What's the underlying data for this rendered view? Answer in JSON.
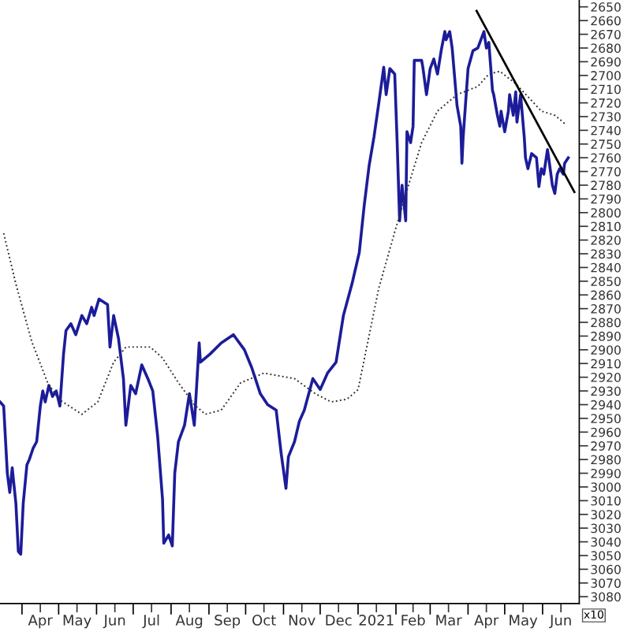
{
  "chart_data": {
    "type": "line",
    "annotations": [
      "x10"
    ],
    "xlim": [
      "2020-03-14",
      "2021-07-01"
    ],
    "ylim": [
      3085,
      2645
    ],
    "xticks": [
      {
        "value": "2020-04-01",
        "label": null
      },
      {
        "value": "2020-05-01",
        "label": null
      },
      {
        "value": "2020-06-01",
        "label": null
      },
      {
        "value": "2020-07-01",
        "label": null
      },
      {
        "value": "2020-08-01",
        "label": null
      },
      {
        "value": "2020-09-01",
        "label": null
      },
      {
        "value": "2020-10-01",
        "label": null
      },
      {
        "value": "2020-11-01",
        "label": null
      },
      {
        "value": "2020-12-01",
        "label": null
      },
      {
        "value": "2021-01-01",
        "label": null
      },
      {
        "value": "2021-02-01",
        "label": null
      },
      {
        "value": "2021-03-01",
        "label": null
      },
      {
        "value": "2021-04-01",
        "label": null
      },
      {
        "value": "2021-05-01",
        "label": null
      },
      {
        "value": "2021-06-01",
        "label": null
      },
      {
        "value": "2020-04-16",
        "label": "Apr"
      },
      {
        "value": "2020-05-16",
        "label": "May"
      },
      {
        "value": "2020-06-16",
        "label": "Jun"
      },
      {
        "value": "2020-07-16",
        "label": "Jul"
      },
      {
        "value": "2020-08-16",
        "label": "Aug"
      },
      {
        "value": "2020-09-16",
        "label": "Sep"
      },
      {
        "value": "2020-10-16",
        "label": "Oct"
      },
      {
        "value": "2020-11-16",
        "label": "Nov"
      },
      {
        "value": "2020-12-16",
        "label": "Dec"
      },
      {
        "value": "2021-01-16",
        "label": "2021"
      },
      {
        "value": "2021-02-15",
        "label": "Feb"
      },
      {
        "value": "2021-03-16",
        "label": "Mar"
      },
      {
        "value": "2021-04-16",
        "label": "Apr"
      },
      {
        "value": "2021-05-16",
        "label": "May"
      },
      {
        "value": "2021-06-16",
        "label": "Jun"
      }
    ],
    "yticks": [
      2650,
      2660,
      2670,
      2680,
      2690,
      2700,
      2710,
      2720,
      2730,
      2740,
      2750,
      2760,
      2770,
      2780,
      2790,
      2800,
      2810,
      2820,
      2830,
      2840,
      2850,
      2860,
      2870,
      2880,
      2890,
      2900,
      2910,
      2920,
      2930,
      2940,
      2950,
      2960,
      2970,
      2980,
      2990,
      3000,
      3010,
      3020,
      3030,
      3040,
      3050,
      3060,
      3070,
      3080
    ],
    "grid": false,
    "legend": false,
    "series": [
      {
        "color": "#1c1c9a",
        "line_style": "solid",
        "x": [
          "2020-03-14",
          "2020-03-17",
          "2020-03-20",
          "2020-03-22",
          "2020-03-24",
          "2020-03-27",
          "2020-03-29",
          "2020-03-31",
          "2020-04-02",
          "2020-04-05",
          "2020-04-07",
          "2020-04-10",
          "2020-04-13",
          "2020-04-16",
          "2020-04-18",
          "2020-04-20",
          "2020-04-23",
          "2020-04-26",
          "2020-04-29",
          "2020-05-02",
          "2020-05-05",
          "2020-05-07",
          "2020-05-11",
          "2020-05-15",
          "2020-05-20",
          "2020-05-24",
          "2020-05-28",
          "2020-05-30",
          "2020-06-03",
          "2020-06-10",
          "2020-06-12",
          "2020-06-15",
          "2020-06-19",
          "2020-06-23",
          "2020-06-25",
          "2020-06-29",
          "2020-07-03",
          "2020-07-08",
          "2020-07-13",
          "2020-07-17",
          "2020-07-21",
          "2020-07-25",
          "2020-07-26",
          "2020-07-30",
          "2020-08-02",
          "2020-08-04",
          "2020-08-07",
          "2020-08-12",
          "2020-08-16",
          "2020-08-20",
          "2020-08-24",
          "2020-08-25",
          "2020-09-02",
          "2020-09-11",
          "2020-09-21",
          "2020-09-30",
          "2020-10-06",
          "2020-10-13",
          "2020-10-19",
          "2020-10-26",
          "2020-10-30",
          "2020-11-03",
          "2020-11-05",
          "2020-11-10",
          "2020-11-14",
          "2020-11-18",
          "2020-11-25",
          "2020-12-01",
          "2020-12-07",
          "2020-12-14",
          "2020-12-20",
          "2020-12-27",
          "2021-01-02",
          "2021-01-06",
          "2021-01-10",
          "2021-01-14",
          "2021-01-18",
          "2021-01-22",
          "2021-01-24",
          "2021-01-27",
          "2021-01-31",
          "2021-02-02",
          "2021-02-04",
          "2021-02-06",
          "2021-02-09",
          "2021-02-10",
          "2021-02-13",
          "2021-02-15",
          "2021-02-16",
          "2021-02-22",
          "2021-02-23",
          "2021-02-26",
          "2021-03-01",
          "2021-03-04",
          "2021-03-07",
          "2021-03-10",
          "2021-03-13",
          "2021-03-14",
          "2021-03-17",
          "2021-03-19",
          "2021-03-23",
          "2021-03-26",
          "2021-03-27",
          "2021-03-28",
          "2021-04-01",
          "2021-04-05",
          "2021-04-09",
          "2021-04-14",
          "2021-04-16",
          "2021-04-18",
          "2021-04-21",
          "2021-04-22",
          "2021-04-25",
          "2021-04-27",
          "2021-04-28",
          "2021-05-01",
          "2021-05-04",
          "2021-05-05",
          "2021-05-08",
          "2021-05-10",
          "2021-05-11",
          "2021-05-14",
          "2021-05-17",
          "2021-05-18",
          "2021-05-20",
          "2021-05-23",
          "2021-05-27",
          "2021-05-29",
          "2021-05-31",
          "2021-06-02",
          "2021-06-05",
          "2021-06-06",
          "2021-06-09",
          "2021-06-11",
          "2021-06-13",
          "2021-06-15",
          "2021-06-18",
          "2021-06-19",
          "2021-06-22"
        ],
        "values": [
          2938,
          2941,
          2990,
          3004,
          2986,
          3012,
          3047,
          3049,
          3012,
          2984,
          2980,
          2972,
          2967,
          2941,
          2930,
          2938,
          2926,
          2934,
          2930,
          2941,
          2903,
          2886,
          2881,
          2889,
          2875,
          2881,
          2869,
          2875,
          2863,
          2867,
          2898,
          2875,
          2892,
          2921,
          2955,
          2926,
          2932,
          2911,
          2921,
          2930,
          2963,
          3009,
          3041,
          3035,
          3043,
          2990,
          2967,
          2955,
          2932,
          2955,
          2895,
          2909,
          2903,
          2895,
          2889,
          2900,
          2913,
          2932,
          2940,
          2944,
          2975,
          3001,
          2978,
          2967,
          2952,
          2944,
          2921,
          2929,
          2917,
          2909,
          2875,
          2852,
          2829,
          2795,
          2766,
          2745,
          2720,
          2694,
          2714,
          2695,
          2699,
          2749,
          2806,
          2780,
          2806,
          2741,
          2749,
          2737,
          2689,
          2689,
          2694,
          2714,
          2695,
          2688,
          2699,
          2682,
          2668,
          2674,
          2668,
          2680,
          2722,
          2737,
          2764,
          2745,
          2695,
          2682,
          2680,
          2668,
          2680,
          2676,
          2711,
          2714,
          2729,
          2737,
          2726,
          2741,
          2726,
          2714,
          2729,
          2712,
          2734,
          2714,
          2745,
          2760,
          2768,
          2757,
          2760,
          2781,
          2768,
          2772,
          2754,
          2760,
          2780,
          2786,
          2772,
          2768,
          2772,
          2764,
          2760
        ]
      },
      {
        "color": "#303030",
        "line_style": "dotted",
        "x": [
          "2020-03-17",
          "2020-03-27",
          "2020-04-09",
          "2020-04-22",
          "2020-05-01",
          "2020-05-20",
          "2020-06-02",
          "2020-06-15",
          "2020-06-25",
          "2020-07-15",
          "2020-07-25",
          "2020-08-07",
          "2020-08-20",
          "2020-08-29",
          "2020-09-11",
          "2020-09-27",
          "2020-10-16",
          "2020-11-10",
          "2020-11-27",
          "2020-12-10",
          "2020-12-23",
          "2021-01-01",
          "2021-01-18",
          "2021-01-31",
          "2021-02-13",
          "2021-02-22",
          "2021-03-07",
          "2021-03-23",
          "2021-04-09",
          "2021-04-18",
          "2021-04-27",
          "2021-05-10",
          "2021-05-31",
          "2021-06-11",
          "2021-06-19"
        ],
        "values": [
          2815,
          2852,
          2894,
          2924,
          2936,
          2947,
          2938,
          2909,
          2898,
          2898,
          2906,
          2924,
          2940,
          2947,
          2944,
          2924,
          2917,
          2921,
          2932,
          2938,
          2936,
          2929,
          2855,
          2814,
          2775,
          2749,
          2726,
          2714,
          2708,
          2699,
          2697,
          2706,
          2726,
          2729,
          2735
        ]
      },
      {
        "color": "#000000",
        "line_style": "solid",
        "x": [
          "2021-04-08",
          "2021-06-27"
        ],
        "values": [
          2653,
          2785
        ]
      }
    ]
  }
}
